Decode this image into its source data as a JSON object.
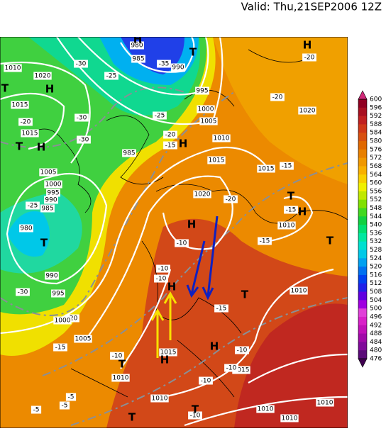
{
  "title": "Valid: Thu,21SEP2006 12Z",
  "colorbar": {
    "levels": [
      600,
      596,
      592,
      588,
      584,
      580,
      576,
      572,
      568,
      564,
      560,
      556,
      552,
      548,
      544,
      540,
      536,
      532,
      528,
      524,
      520,
      516,
      512,
      508,
      504,
      500,
      496,
      492,
      488,
      484,
      480,
      476
    ],
    "colors": [
      "#900020",
      "#a81020",
      "#c02020",
      "#d03818",
      "#d85010",
      "#e06800",
      "#e88000",
      "#f09800",
      "#f8b000",
      "#f8d000",
      "#f0f000",
      "#c0e800",
      "#80e000",
      "#40d820",
      "#10d040",
      "#00e070",
      "#00e8a0",
      "#00e0d0",
      "#00c8e8",
      "#00a0f0",
      "#0070f0",
      "#0040f0",
      "#2020e8",
      "#6000e0",
      "#a000e0",
      "#e040d8",
      "#d820c8",
      "#c010b8",
      "#a00aa8",
      "#800a9a",
      "#5a0a78"
    ]
  },
  "contour_labels": [
    "980",
    "985",
    "-35",
    "990",
    "995",
    "1000",
    "1005",
    "1010",
    "1015",
    "1020",
    "-20",
    "1010",
    "1020",
    "-30",
    "-25",
    "1015",
    "-20",
    "1015",
    "-30",
    "-30",
    "-25",
    "-20",
    "-15",
    "985",
    "1005",
    "1000",
    "995",
    "990",
    "985",
    "-25",
    "980",
    "990",
    "-30",
    "995",
    "-20",
    "1000",
    "1005",
    "-15",
    "-10",
    "-10",
    "-10",
    "-15",
    "-15",
    "1010",
    "-15",
    "1010",
    "1015",
    "-15",
    "1020",
    "-20",
    "-20",
    "-10",
    "1015",
    "-10",
    "1015",
    "-10",
    "1010",
    "-10",
    "1010",
    "-5",
    "-5",
    "-5",
    "1010",
    "1010",
    "-10",
    "1010"
  ],
  "centers": [
    "H",
    "T",
    "H",
    "T",
    "H",
    "H",
    "T",
    "H",
    "T",
    "H",
    "T",
    "H",
    "T",
    "H",
    "T",
    "H",
    "H",
    "T",
    "T",
    "T"
  ]
}
